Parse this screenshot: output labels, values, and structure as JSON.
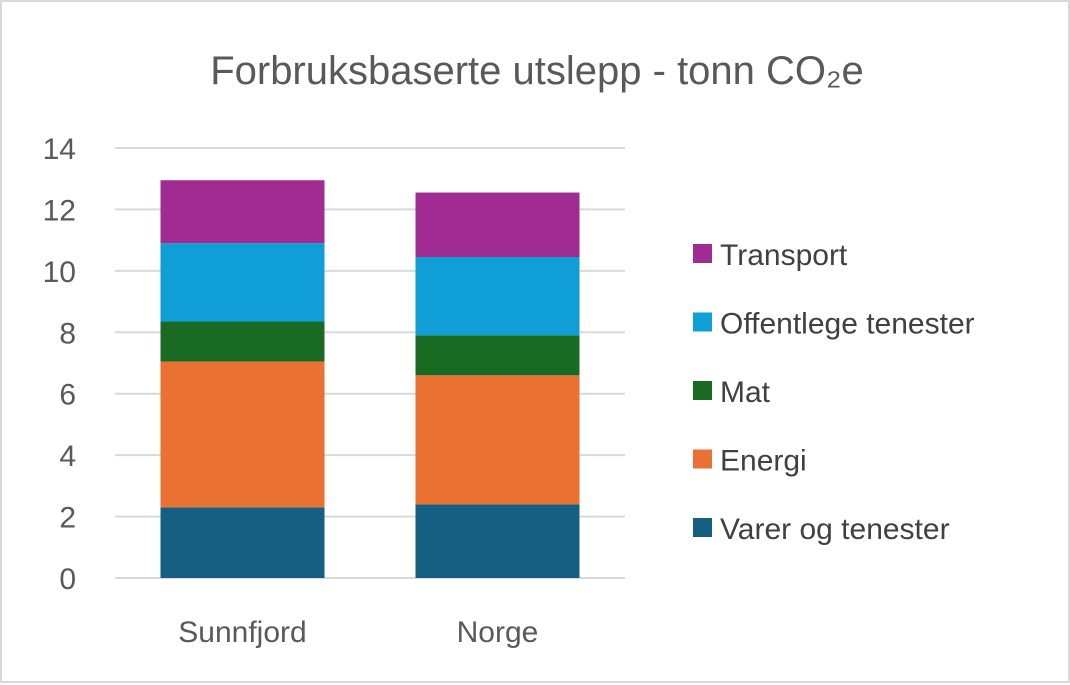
{
  "chart_data": {
    "type": "bar",
    "stacked": true,
    "title": "Forbruksbaserte utslepp - tonn CO₂e",
    "xlabel": "",
    "ylabel": "",
    "ylim": [
      0,
      14
    ],
    "yticks": [
      "0",
      "2",
      "4",
      "6",
      "8",
      "10",
      "12",
      "14"
    ],
    "grid": true,
    "legend_position": "right",
    "categories": [
      "Sunnfjord",
      "Norge"
    ],
    "series": [
      {
        "name": "Varer og tenester",
        "color": "#156082",
        "values": [
          2.3,
          2.4
        ]
      },
      {
        "name": "Energi",
        "color": "#E97132",
        "values": [
          4.75,
          4.2
        ]
      },
      {
        "name": "Mat",
        "color": "#196B24",
        "values": [
          1.3,
          1.3
        ]
      },
      {
        "name": "Offentlege tenester",
        "color": "#0F9ED5",
        "values": [
          2.55,
          2.55
        ]
      },
      {
        "name": "Transport",
        "color": "#A02B93",
        "values": [
          2.05,
          2.1
        ]
      }
    ]
  }
}
